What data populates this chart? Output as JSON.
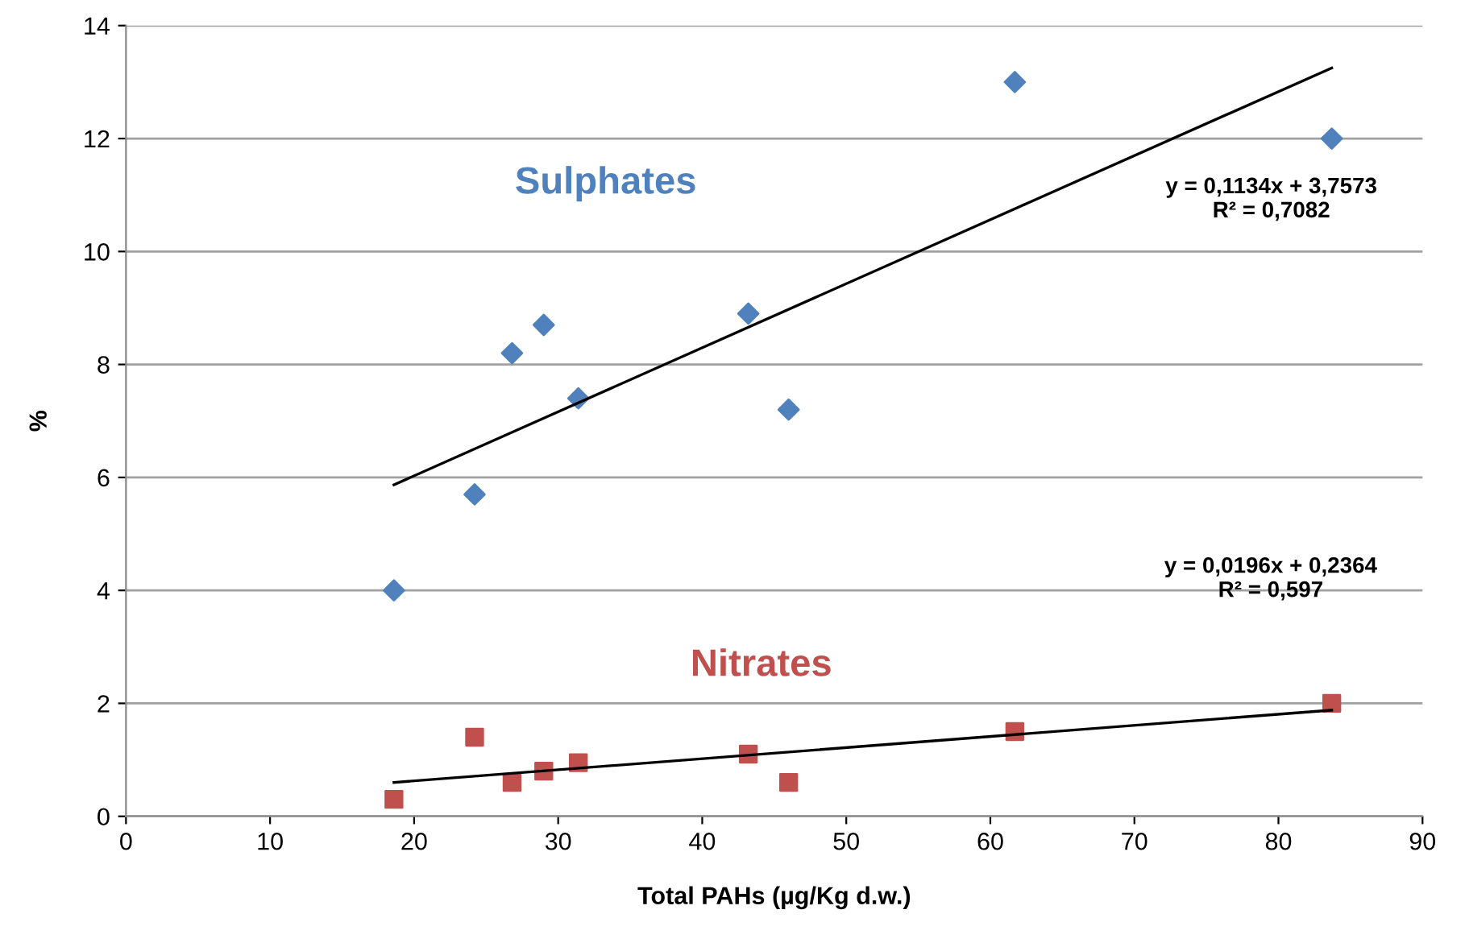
{
  "chart_data": {
    "type": "scatter",
    "xlabel": "Total PAHs (µg/Kg d.w.)",
    "ylabel": "%",
    "xlim": [
      0,
      90
    ],
    "xticks": [
      0,
      10,
      20,
      30,
      40,
      50,
      60,
      70,
      80,
      90
    ],
    "ylim": [
      0,
      14
    ],
    "yticks": [
      0,
      2,
      4,
      6,
      8,
      10,
      12,
      14
    ],
    "grid": "y",
    "legend": false,
    "series": [
      {
        "name": "Sulphates",
        "color": "#4f81bd",
        "marker": "diamond",
        "x": [
          18.6,
          24.2,
          26.8,
          29.0,
          31.4,
          43.2,
          46.0,
          61.7,
          83.7
        ],
        "values": [
          4.0,
          5.7,
          8.2,
          8.7,
          7.4,
          8.9,
          7.2,
          13.0,
          12.0
        ]
      },
      {
        "name": "Nitrates",
        "color": "#c0504d",
        "marker": "square",
        "x": [
          18.6,
          24.2,
          26.8,
          29.0,
          31.4,
          43.2,
          46.0,
          61.7,
          83.7
        ],
        "values": [
          0.3,
          1.4,
          0.6,
          0.8,
          0.95,
          1.1,
          0.6,
          1.5,
          2.0
        ]
      },
      {
        "type": "line",
        "color": "#000000",
        "marker": "none",
        "x": [
          18.6,
          83.7
        ],
        "values": [
          5.87,
          13.25
        ]
      },
      {
        "type": "line",
        "color": "#000000",
        "marker": "none",
        "x": [
          18.6,
          83.7
        ],
        "values": [
          0.6,
          1.88
        ]
      }
    ],
    "annotations": [
      "y = 0,1134x + 3,7573\nR² = 0,7082",
      "y = 0,0196x + 0,2364\nR² = 0,597"
    ]
  }
}
